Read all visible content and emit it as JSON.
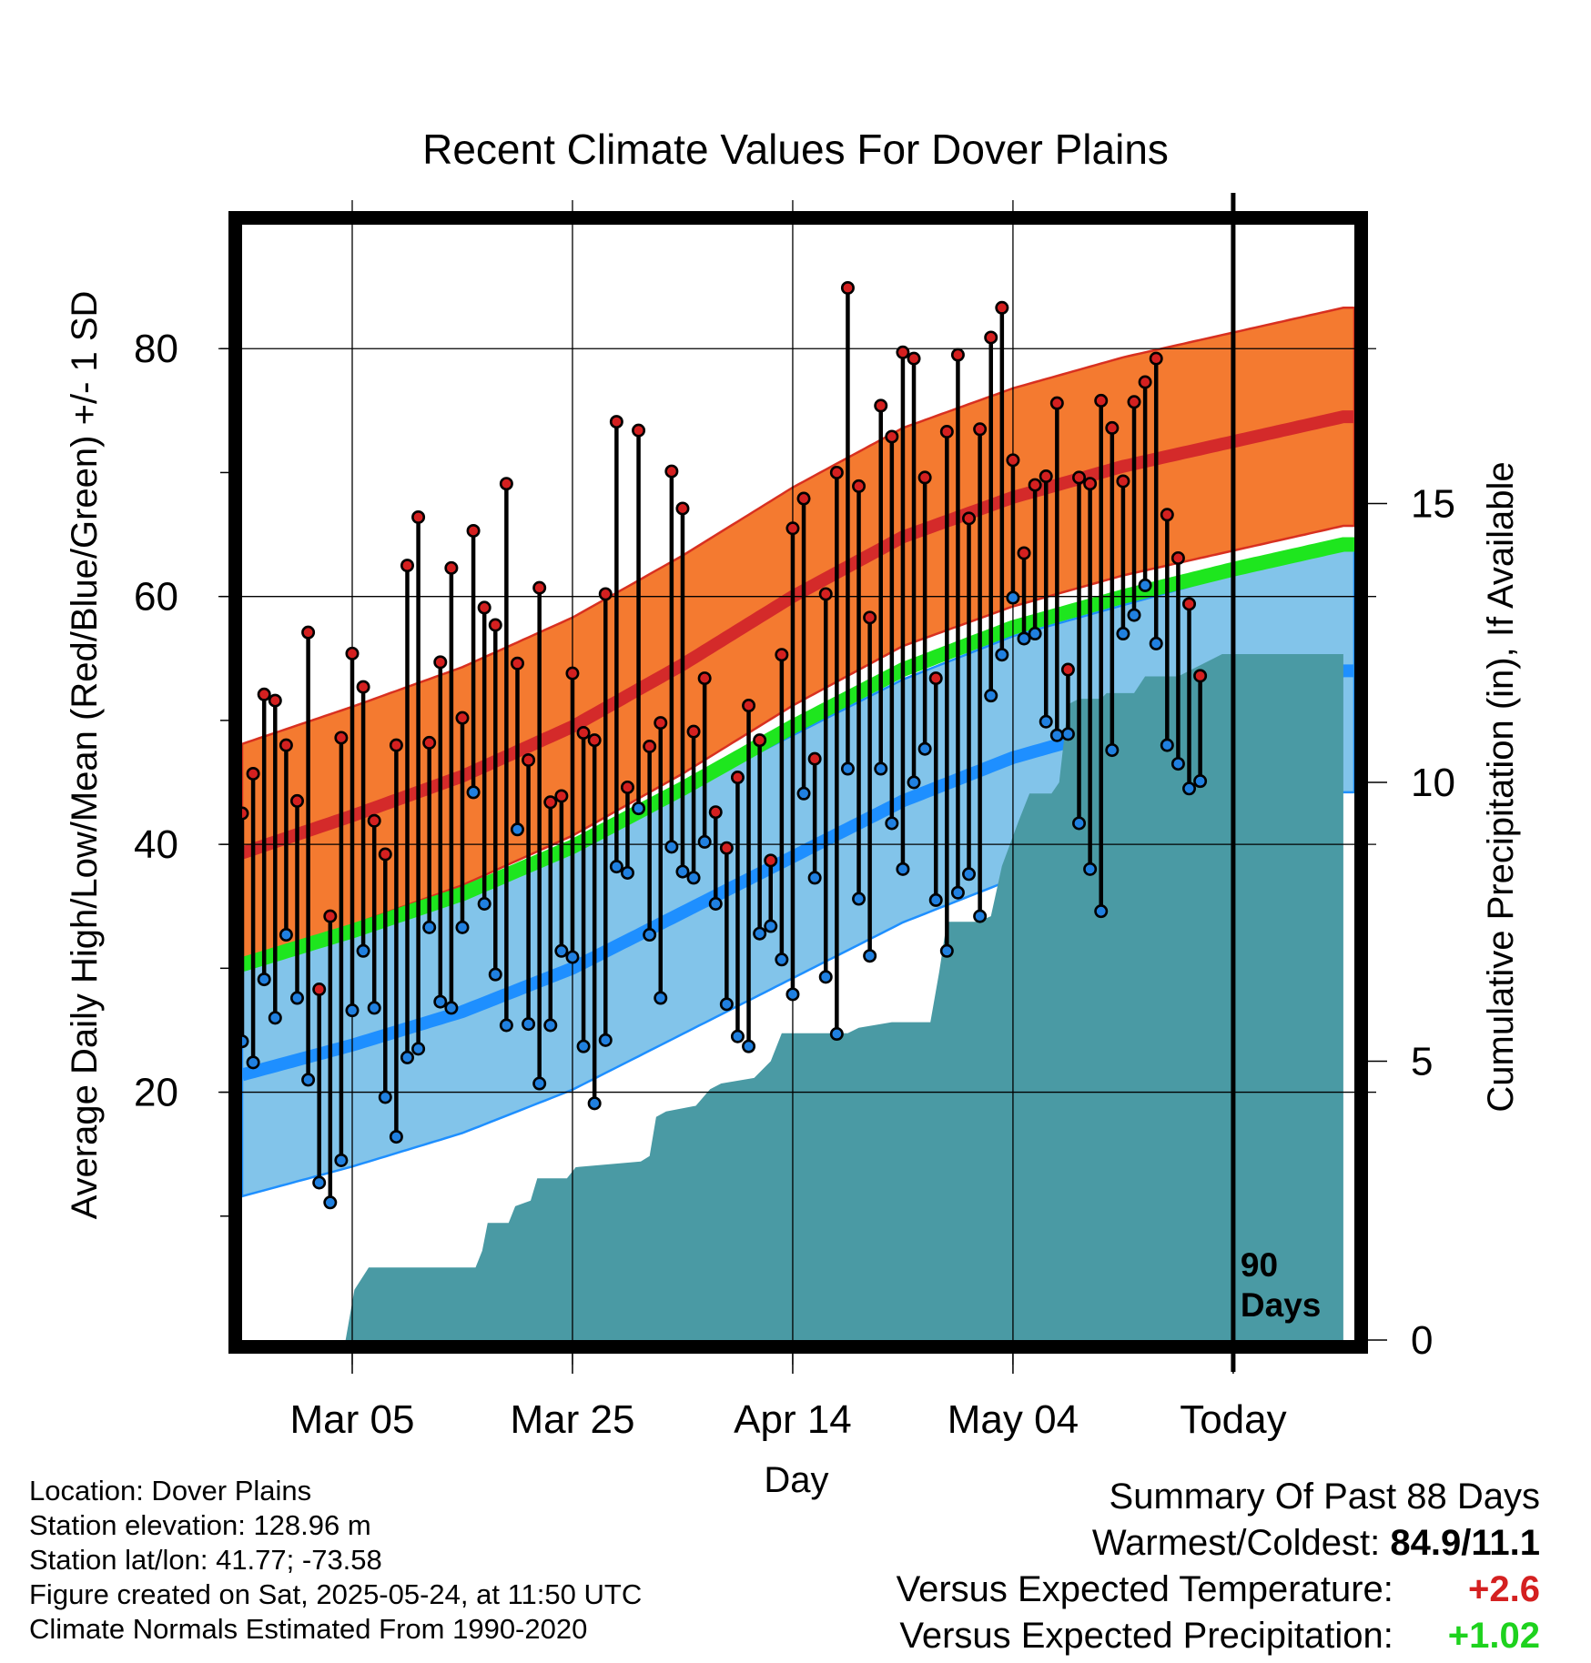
{
  "colors": {
    "high_normal": "#e02020",
    "high_band": "#f47a30",
    "low_normal": "#1e8fff",
    "low_band": "#82c4ea",
    "mean_normal": "#1ee61e",
    "precip": "#4a9aa4",
    "high_point": "#d42020",
    "low_point": "#2080e0",
    "expected_temp": "#d42020",
    "expected_precip": "#1ed21e"
  },
  "chart_data": {
    "type": "line",
    "title": "Recent Climate Values For Dover Plains",
    "xlabel": "Day",
    "ylabel": "Average Daily High/Low/Mean (Red/Blue/Green) +/- 1 SD",
    "y2label": "Cumulative Precipitation (in), If Available",
    "start_date": "2025-02-23",
    "x_range": [
      "2025-02-23",
      "2025-06-04"
    ],
    "x_ticks": [
      "Mar 05",
      "Mar 25",
      "Apr 14",
      "May 04",
      "Today"
    ],
    "ylim": [
      0,
      90
    ],
    "y_ticks": [
      20,
      40,
      60,
      80
    ],
    "y2lim": [
      0,
      20
    ],
    "y2_ticks": [
      0,
      5,
      10,
      15
    ],
    "today_marker_label": [
      "90",
      "Days"
    ],
    "normals": {
      "high_mean": [
        [
          0,
          39.3
        ],
        [
          10,
          42.3
        ],
        [
          20,
          45.5
        ],
        [
          30,
          49.5
        ],
        [
          40,
          54.5
        ],
        [
          50,
          60.0
        ],
        [
          60,
          64.8
        ],
        [
          70,
          68.0
        ],
        [
          80,
          70.5
        ],
        [
          90,
          72.5
        ],
        [
          100,
          74.5
        ]
      ],
      "high_sd": 8.8,
      "low_mean": [
        [
          0,
          21.4
        ],
        [
          10,
          23.8
        ],
        [
          20,
          26.5
        ],
        [
          30,
          30.0
        ],
        [
          40,
          34.5
        ],
        [
          50,
          39.0
        ],
        [
          60,
          43.5
        ],
        [
          70,
          47.0
        ],
        [
          80,
          49.5
        ],
        [
          90,
          52.0
        ],
        [
          100,
          54.0
        ]
      ],
      "low_sd": 9.8,
      "mean": [
        [
          0,
          30.3
        ],
        [
          10,
          33.0
        ],
        [
          20,
          36.0
        ],
        [
          30,
          39.8
        ],
        [
          40,
          44.5
        ],
        [
          50,
          49.5
        ],
        [
          60,
          54.1
        ],
        [
          70,
          57.5
        ],
        [
          80,
          60.0
        ],
        [
          90,
          62.2
        ],
        [
          100,
          64.2
        ]
      ]
    },
    "daily_high": [
      42.5,
      45.7,
      52.1,
      51.6,
      48.0,
      43.5,
      57.1,
      28.3,
      34.2,
      48.6,
      55.4,
      52.7,
      41.9,
      39.2,
      48.0,
      62.5,
      66.4,
      48.2,
      54.7,
      62.3,
      50.2,
      65.3,
      59.1,
      57.7,
      69.1,
      54.6,
      46.8,
      60.7,
      43.4,
      43.9,
      53.8,
      49.0,
      48.4,
      60.2,
      74.1,
      44.6,
      73.4,
      47.9,
      49.8,
      70.1,
      67.1,
      49.1,
      53.4,
      42.6,
      39.7,
      45.4,
      51.2,
      48.4,
      38.7,
      55.3,
      65.5,
      67.9,
      46.9,
      60.2,
      70.0,
      84.9,
      68.9,
      58.3,
      75.4,
      72.9,
      79.7,
      79.2,
      69.6,
      53.4,
      73.3,
      79.5,
      66.3,
      73.5,
      80.9,
      83.3,
      71.0,
      63.5,
      69.0,
      69.7,
      75.6,
      54.1,
      69.6,
      69.1,
      75.8,
      73.6,
      69.3,
      75.7,
      77.3,
      79.2,
      66.6,
      63.1,
      59.4,
      53.6
    ],
    "daily_low": [
      24.1,
      22.4,
      29.1,
      26.0,
      32.7,
      27.6,
      21.0,
      12.7,
      11.1,
      14.5,
      26.6,
      31.4,
      26.8,
      19.6,
      16.4,
      22.8,
      23.5,
      33.3,
      27.3,
      26.8,
      33.3,
      44.2,
      35.2,
      29.5,
      25.4,
      41.2,
      25.5,
      20.7,
      25.4,
      31.4,
      30.9,
      23.7,
      19.1,
      24.2,
      38.2,
      37.7,
      42.9,
      32.7,
      27.6,
      39.8,
      37.8,
      37.3,
      40.2,
      35.2,
      27.1,
      24.5,
      23.7,
      32.8,
      33.4,
      30.7,
      27.9,
      44.1,
      37.3,
      29.3,
      24.7,
      46.1,
      35.6,
      31.0,
      46.1,
      41.7,
      38.0,
      45.0,
      47.7,
      35.5,
      31.4,
      36.1,
      37.6,
      34.2,
      52.0,
      55.3,
      59.9,
      56.6,
      57.0,
      49.9,
      48.8,
      48.9,
      41.7,
      38.0,
      34.6,
      47.6,
      57.0,
      58.5,
      60.9,
      56.2,
      48.0,
      46.5,
      44.5,
      45.1
    ],
    "cumulative_precip": [
      [
        0,
        0
      ],
      [
        9.4,
        0
      ],
      [
        10.2,
        0.9
      ],
      [
        11.5,
        1.3
      ],
      [
        21.2,
        1.3
      ],
      [
        21.8,
        1.6
      ],
      [
        22.3,
        2.1
      ],
      [
        24.2,
        2.1
      ],
      [
        24.8,
        2.4
      ],
      [
        26.2,
        2.5
      ],
      [
        26.8,
        2.9
      ],
      [
        29.5,
        2.9
      ],
      [
        30.3,
        3.1
      ],
      [
        36.2,
        3.2
      ],
      [
        37.0,
        3.3
      ],
      [
        37.6,
        4.0
      ],
      [
        38.5,
        4.1
      ],
      [
        41.2,
        4.2
      ],
      [
        42.5,
        4.5
      ],
      [
        43.5,
        4.6
      ],
      [
        46.5,
        4.7
      ],
      [
        48.0,
        5.0
      ],
      [
        49.0,
        5.5
      ],
      [
        55.0,
        5.5
      ],
      [
        56.0,
        5.6
      ],
      [
        59.0,
        5.7
      ],
      [
        62.5,
        5.7
      ],
      [
        63.3,
        6.6
      ],
      [
        64.0,
        7.5
      ],
      [
        66.8,
        7.5
      ],
      [
        68.0,
        7.6
      ],
      [
        69.0,
        8.5
      ],
      [
        70.5,
        9.3
      ],
      [
        71.5,
        9.8
      ],
      [
        73.5,
        9.8
      ],
      [
        74.2,
        10.0
      ],
      [
        75.0,
        11.4
      ],
      [
        76.0,
        11.5
      ],
      [
        78.0,
        11.5
      ],
      [
        78.5,
        11.6
      ],
      [
        81.0,
        11.6
      ],
      [
        82.0,
        11.9
      ],
      [
        85.0,
        11.9
      ],
      [
        87.0,
        12.1
      ],
      [
        89.0,
        12.3
      ],
      [
        100,
        12.3
      ]
    ]
  },
  "footer": {
    "location": "Location: Dover Plains",
    "elevation": "Station elevation: 128.96 m",
    "latlon": "Station lat/lon: 41.77; -73.58",
    "created": "Figure created on Sat, 2025-05-24, at 11:50 UTC",
    "normals": "Climate Normals Estimated From 1990-2020"
  },
  "summary": {
    "heading": "Summary Of Past 88 Days",
    "warm_cold_label": "Warmest/Coldest:",
    "warm_cold_value": "84.9/11.1",
    "temp_label": "Versus Expected Temperature:",
    "temp_value": "+2.6",
    "precip_label": "Versus Expected Precipitation:",
    "precip_value": "+1.02"
  }
}
